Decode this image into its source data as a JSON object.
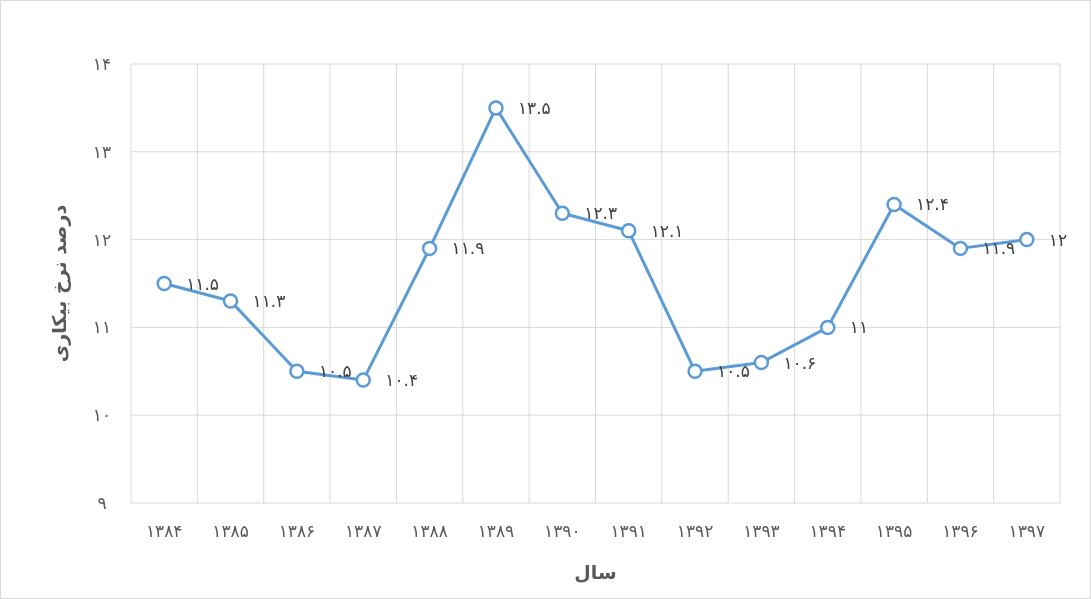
{
  "chart_data": {
    "type": "line",
    "xlabel": "سال",
    "ylabel": "درصد نرخ بیکاری",
    "categories": [
      "۱۳۸۴",
      "۱۳۸۵",
      "۱۳۸۶",
      "۱۳۸۷",
      "۱۳۸۸",
      "۱۳۸۹",
      "۱۳۹۰",
      "۱۳۹۱",
      "۱۳۹۲",
      "۱۳۹۳",
      "۱۳۹۴",
      "۱۳۹۵",
      "۱۳۹۶",
      "۱۳۹۷"
    ],
    "series": [
      {
        "color": "#5b9bd5",
        "values": [
          11.5,
          11.3,
          10.5,
          10.4,
          11.9,
          13.5,
          12.3,
          12.1,
          10.5,
          10.6,
          11,
          12.4,
          11.9,
          12
        ],
        "value_labels": [
          "۱۱.۵",
          "۱۱.۳",
          "۱۰.۵",
          "۱۰.۴",
          "۱۱.۹",
          "۱۳.۵",
          "۱۲.۳",
          "۱۲.۱",
          "۱۰.۵",
          "۱۰.۶",
          "۱۱",
          "۱۲.۴",
          "۱۱.۹",
          "۱۲"
        ]
      }
    ],
    "ylim": [
      9,
      14
    ],
    "yticks": [
      {
        "value": 9,
        "label": "۹"
      },
      {
        "value": 10,
        "label": "۱۰"
      },
      {
        "value": 11,
        "label": "۱۱"
      },
      {
        "value": 12,
        "label": "۱۲"
      },
      {
        "value": 13,
        "label": "۱۳"
      },
      {
        "value": 14,
        "label": "۱۴"
      }
    ],
    "grid": true,
    "marker": "circle",
    "line_style": "solid"
  }
}
